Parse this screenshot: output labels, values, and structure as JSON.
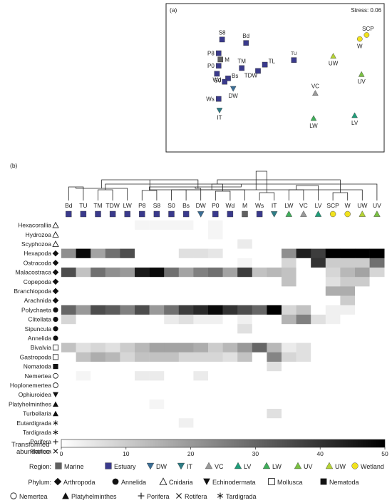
{
  "chart_data": [
    {
      "type": "scatter",
      "panel_label": "(a)",
      "annotation": "Stress: 0.06",
      "points": [
        {
          "label": "S8",
          "x": -0.62,
          "y": 0.62,
          "shape": "square",
          "region": "Estuary"
        },
        {
          "label": "Bd",
          "x": -0.34,
          "y": 0.56,
          "shape": "square",
          "region": "Estuary"
        },
        {
          "label": "P8",
          "x": -0.66,
          "y": 0.38,
          "shape": "square",
          "region": "Estuary"
        },
        {
          "label": "M",
          "x": -0.64,
          "y": 0.27,
          "shape": "square",
          "region": "Marine"
        },
        {
          "label": "P0",
          "x": -0.66,
          "y": 0.16,
          "shape": "square",
          "region": "Estuary"
        },
        {
          "label": "Wd",
          "x": -0.68,
          "y": 0.02,
          "shape": "square",
          "region": "Estuary"
        },
        {
          "label": "TM",
          "x": -0.39,
          "y": 0.12,
          "shape": "square",
          "region": "Estuary"
        },
        {
          "label": "TL",
          "x": -0.12,
          "y": 0.18,
          "shape": "square",
          "region": "Estuary"
        },
        {
          "label": "TDW",
          "x": -0.2,
          "y": 0.07,
          "shape": "square",
          "region": "Estuary"
        },
        {
          "label": "TU",
          "x": 0.22,
          "y": 0.26,
          "shape": "square",
          "region": "Estuary"
        },
        {
          "label": "Bs",
          "x": -0.55,
          "y": -0.06,
          "shape": "square",
          "region": "Estuary"
        },
        {
          "label": "S0",
          "x": -0.59,
          "y": -0.12,
          "shape": "square",
          "region": "Estuary"
        },
        {
          "label": "DW",
          "x": -0.49,
          "y": -0.24,
          "shape": "triangle-down",
          "region": "DW"
        },
        {
          "label": "Ws",
          "x": -0.66,
          "y": -0.42,
          "shape": "square",
          "region": "Estuary"
        },
        {
          "label": "IT",
          "x": -0.65,
          "y": -0.62,
          "shape": "triangle-down",
          "region": "IT"
        },
        {
          "label": "VC",
          "x": 0.47,
          "y": -0.32,
          "shape": "triangle-up",
          "region": "VC"
        },
        {
          "label": "LW",
          "x": 0.45,
          "y": -0.76,
          "shape": "triangle-up",
          "region": "LW"
        },
        {
          "label": "LV",
          "x": 0.93,
          "y": -0.71,
          "shape": "triangle-up",
          "region": "LV"
        },
        {
          "label": "UW",
          "x": 0.68,
          "y": 0.33,
          "shape": "triangle-up",
          "region": "UW"
        },
        {
          "label": "UV",
          "x": 1.01,
          "y": 0.01,
          "shape": "triangle-up",
          "region": "UV"
        },
        {
          "label": "W",
          "x": 0.99,
          "y": 0.63,
          "shape": "circle",
          "region": "Wetland"
        },
        {
          "label": "SCP",
          "x": 1.07,
          "y": 0.7,
          "shape": "circle",
          "region": "Wetland"
        }
      ]
    },
    {
      "type": "heatmap",
      "panel_label": "(b)",
      "columns": [
        "Bd",
        "TU",
        "TM",
        "TDW",
        "LW",
        "P8",
        "S8",
        "S0",
        "Bs",
        "DW",
        "P0",
        "Wd",
        "M",
        "Ws",
        "IT",
        "LW",
        "VC",
        "LV",
        "SCP",
        "W",
        "UW",
        "UV"
      ],
      "column_symbols": [
        "square",
        "square",
        "square",
        "square",
        "square",
        "square",
        "square",
        "square",
        "square",
        "triangle-down",
        "square",
        "square",
        "square",
        "square",
        "triangle-down",
        "triangle-up",
        "triangle-up",
        "triangle-up",
        "circle",
        "circle",
        "triangle-up",
        "triangle-up"
      ],
      "column_regions": [
        "Estuary",
        "Estuary",
        "Estuary",
        "Estuary",
        "Estuary",
        "Estuary",
        "Estuary",
        "Estuary",
        "Estuary",
        "DW",
        "Estuary",
        "Estuary",
        "Marine",
        "Estuary",
        "IT",
        "LW",
        "VC",
        "LV",
        "Wetland",
        "Wetland",
        "UW",
        "UV"
      ],
      "rows": [
        "Hexacorallia",
        "Hydrozoa",
        "Scyphozoa",
        "Hexapoda",
        "Ostracoda",
        "Malacostraca",
        "Copepoda",
        "Branchiopoda",
        "Arachnida",
        "Polychaeta",
        "Clitellata",
        "Sipuncula",
        "Annelida",
        "Bivalvia",
        "Gastropoda",
        "Nematoda",
        "Nemertea",
        "Hoplonemertea",
        "Ophiuroidea",
        "Platyhelminthes",
        "Turbellaria",
        "Eutardigrada",
        "Tardigrada",
        "Porifera",
        "Rotifera"
      ],
      "row_phylum": [
        "Cnidaria",
        "Cnidaria",
        "Cnidaria",
        "Arthropoda",
        "Arthropoda",
        "Arthropoda",
        "Arthropoda",
        "Arthropoda",
        "Arthropoda",
        "Annelida",
        "Annelida",
        "Annelida",
        "Annelida",
        "Mollusca",
        "Mollusca",
        "Nematoda",
        "Nemertea",
        "Nemertea",
        "Echinodermata",
        "Platyhelminthes",
        "Platyhelminthes",
        "Tardigrada",
        "Tardigrada",
        "Porifera",
        "Rotifera"
      ],
      "values": [
        [
          0,
          0,
          0,
          0,
          0,
          2,
          2,
          2,
          2,
          0,
          2,
          0,
          0,
          0,
          0,
          0,
          0,
          0,
          0,
          0,
          0,
          0
        ],
        [
          0,
          0,
          0,
          0,
          0,
          0,
          0,
          0,
          0,
          0,
          2,
          0,
          0,
          0,
          0,
          0,
          0,
          0,
          0,
          0,
          0,
          0
        ],
        [
          0,
          0,
          0,
          0,
          0,
          0,
          0,
          0,
          0,
          0,
          0,
          0,
          4,
          0,
          0,
          0,
          0,
          0,
          0,
          0,
          0,
          0
        ],
        [
          22,
          48,
          18,
          28,
          35,
          0,
          0,
          0,
          6,
          6,
          5,
          0,
          0,
          0,
          0,
          22,
          44,
          38,
          50,
          50,
          50,
          50
        ],
        [
          0,
          0,
          0,
          0,
          0,
          0,
          0,
          0,
          0,
          0,
          0,
          0,
          2,
          0,
          0,
          8,
          0,
          40,
          10,
          10,
          10,
          28
        ],
        [
          35,
          12,
          28,
          22,
          20,
          45,
          48,
          28,
          18,
          25,
          28,
          18,
          38,
          12,
          14,
          12,
          0,
          0,
          8,
          14,
          18,
          8
        ],
        [
          0,
          0,
          0,
          0,
          0,
          0,
          0,
          0,
          0,
          0,
          0,
          0,
          0,
          0,
          0,
          12,
          0,
          0,
          6,
          10,
          10,
          0
        ],
        [
          0,
          0,
          0,
          0,
          0,
          0,
          0,
          0,
          0,
          0,
          0,
          0,
          0,
          0,
          0,
          0,
          0,
          0,
          16,
          16,
          0,
          0
        ],
        [
          0,
          0,
          0,
          0,
          0,
          0,
          0,
          0,
          0,
          0,
          0,
          0,
          0,
          0,
          0,
          0,
          0,
          0,
          0,
          10,
          0,
          0
        ],
        [
          30,
          20,
          35,
          32,
          25,
          35,
          20,
          28,
          38,
          42,
          48,
          40,
          35,
          30,
          50,
          8,
          12,
          0,
          3,
          3,
          0,
          0
        ],
        [
          8,
          0,
          0,
          0,
          0,
          0,
          0,
          4,
          6,
          3,
          3,
          0,
          3,
          0,
          0,
          15,
          25,
          6,
          3,
          0,
          0,
          0
        ],
        [
          0,
          0,
          0,
          0,
          0,
          0,
          0,
          0,
          0,
          0,
          0,
          0,
          6,
          0,
          0,
          0,
          0,
          0,
          0,
          0,
          0,
          0
        ],
        [
          0,
          0,
          0,
          0,
          0,
          0,
          0,
          0,
          0,
          0,
          0,
          0,
          0,
          0,
          0,
          0,
          0,
          0,
          0,
          0,
          0,
          0
        ],
        [
          12,
          6,
          8,
          6,
          10,
          14,
          18,
          18,
          18,
          16,
          10,
          14,
          20,
          30,
          14,
          4,
          6,
          0,
          0,
          0,
          0,
          0
        ],
        [
          0,
          12,
          16,
          14,
          8,
          12,
          12,
          12,
          8,
          8,
          8,
          6,
          12,
          0,
          24,
          8,
          6,
          0,
          0,
          0,
          0,
          0
        ],
        [
          0,
          0,
          0,
          0,
          0,
          0,
          0,
          0,
          0,
          0,
          0,
          0,
          0,
          0,
          6,
          0,
          0,
          0,
          0,
          0,
          0,
          0
        ],
        [
          0,
          2,
          0,
          0,
          0,
          4,
          4,
          0,
          0,
          4,
          0,
          0,
          0,
          0,
          0,
          0,
          0,
          0,
          0,
          0,
          0,
          0
        ],
        [
          0,
          0,
          0,
          0,
          0,
          0,
          0,
          0,
          0,
          0,
          0,
          0,
          0,
          0,
          0,
          0,
          0,
          0,
          0,
          0,
          0,
          0
        ],
        [
          0,
          0,
          0,
          0,
          0,
          0,
          0,
          0,
          0,
          0,
          0,
          0,
          0,
          0,
          0,
          0,
          0,
          0,
          0,
          0,
          0,
          0
        ],
        [
          0,
          0,
          0,
          0,
          0,
          0,
          2,
          0,
          0,
          0,
          0,
          0,
          0,
          0,
          0,
          0,
          0,
          0,
          0,
          0,
          0,
          0
        ],
        [
          0,
          0,
          0,
          0,
          0,
          0,
          0,
          0,
          0,
          0,
          0,
          0,
          0,
          0,
          6,
          0,
          0,
          0,
          0,
          0,
          0,
          0
        ],
        [
          0,
          0,
          0,
          0,
          0,
          0,
          0,
          0,
          3,
          0,
          0,
          0,
          0,
          0,
          0,
          0,
          0,
          0,
          0,
          0,
          0,
          0
        ],
        [
          0,
          0,
          0,
          0,
          0,
          0,
          0,
          0,
          0,
          0,
          0,
          0,
          0,
          0,
          0,
          0,
          0,
          0,
          0,
          0,
          0,
          0
        ],
        [
          0,
          0,
          0,
          0,
          0,
          0,
          0,
          0,
          0,
          0,
          0,
          0,
          0,
          0,
          0,
          0,
          0,
          0,
          0,
          0,
          0,
          0
        ],
        [
          0,
          0,
          0,
          0,
          0,
          0,
          0,
          0,
          0,
          0,
          0,
          0,
          0,
          0,
          0,
          0,
          0,
          0,
          0,
          0,
          0,
          0
        ]
      ],
      "colorbar": {
        "label_line1": "Transformed",
        "label_line2": "abundance",
        "ticks": [
          0,
          10,
          20,
          30,
          40,
          50
        ],
        "range": [
          0,
          50
        ]
      }
    }
  ],
  "region_legend": {
    "title": "Region:",
    "items": [
      {
        "label": "Marine",
        "shape": "square",
        "color": "#606060"
      },
      {
        "label": "Estuary",
        "shape": "square",
        "color": "#3a3a8c"
      },
      {
        "label": "DW",
        "shape": "triangle-down",
        "color": "#3b6e96"
      },
      {
        "label": "IT",
        "shape": "triangle-down",
        "color": "#2e7d86"
      },
      {
        "label": "VC",
        "shape": "triangle-up",
        "color": "#9a9a9a"
      },
      {
        "label": "LV",
        "shape": "triangle-up",
        "color": "#1f9e7a"
      },
      {
        "label": "LW",
        "shape": "triangle-up",
        "color": "#3fae5a"
      },
      {
        "label": "UV",
        "shape": "triangle-up",
        "color": "#7ac142"
      },
      {
        "label": "UW",
        "shape": "triangle-up",
        "color": "#b5d334"
      },
      {
        "label": "Wetland",
        "shape": "circle",
        "color": "#f1e21e"
      }
    ]
  },
  "phylum_legend": {
    "title": "Phylum:",
    "items": [
      {
        "label": "Arthropoda",
        "symbol": "diamond"
      },
      {
        "label": "Annelida",
        "symbol": "circle-filled"
      },
      {
        "label": "Cnidaria",
        "symbol": "triangle-open"
      },
      {
        "label": "Echinodermata",
        "symbol": "triangle-down-filled"
      },
      {
        "label": "Mollusca",
        "symbol": "square-open"
      },
      {
        "label": "Nematoda",
        "symbol": "square-filled"
      },
      {
        "label": "Nemertea",
        "symbol": "circle-open"
      },
      {
        "label": "Platyhelminthes",
        "symbol": "triangle-filled"
      },
      {
        "label": "Porifera",
        "symbol": "plus"
      },
      {
        "label": "Rotifera",
        "symbol": "cross"
      },
      {
        "label": "Tardigrada",
        "symbol": "asterisk"
      }
    ]
  }
}
